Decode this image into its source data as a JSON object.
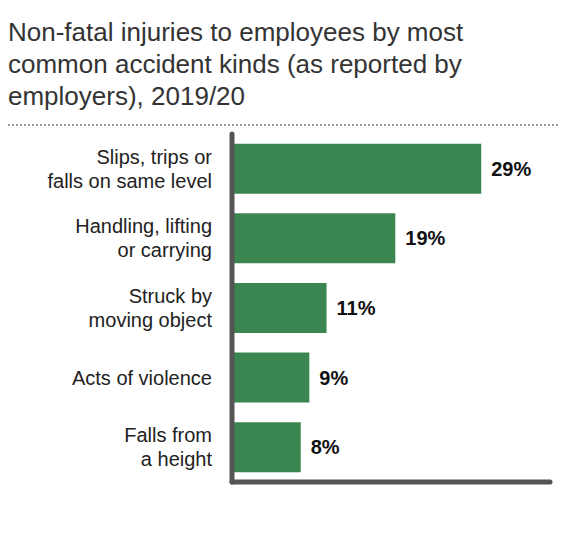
{
  "chart_data": {
    "type": "bar",
    "title": "Non-fatal injuries to employees by most common accident kinds (as reported by employers), 2019/20",
    "orientation": "horizontal",
    "categories": [
      "Slips, trips or falls on same level",
      "Handling, lifting or carrying",
      "Struck by moving object",
      "Acts of violence",
      "Falls from a height"
    ],
    "values": [
      29,
      19,
      11,
      9,
      8
    ],
    "value_labels": [
      "29%",
      "19%",
      "11%",
      "9%",
      "8%"
    ],
    "color": "#3b8650",
    "xlim": [
      0,
      37
    ],
    "xticks": [],
    "tick_labels": "y",
    "data_labels": true,
    "grid": false
  }
}
